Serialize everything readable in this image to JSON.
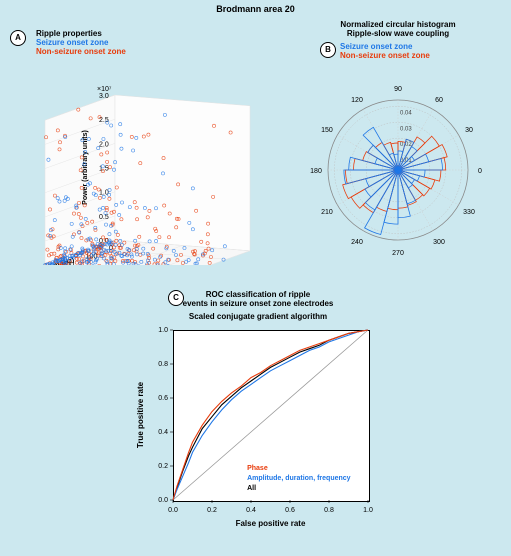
{
  "main_title": "Brodmann area 20",
  "colors": {
    "bg": "#cce8ef",
    "plot_bg": "#ffffff",
    "soz": "#1f77e6",
    "nsoz": "#e83c0c",
    "all": "#000000",
    "grid": "#d9d9d9",
    "diag": "#999999"
  },
  "panelA": {
    "label": "A",
    "title": "Ripple properties",
    "legend_soz": "Seizure onset zone",
    "legend_nsoz": "Non-seizure onset zone",
    "x_label": "Spectral content (Hz)",
    "x_range": [
      0,
      300
    ],
    "x_ticks": [
      0,
      100,
      200,
      300
    ],
    "y_label": "Duration",
    "y_range": [
      0,
      0.2
    ],
    "y_ticks": [
      0.0,
      0.05,
      0.1,
      0.15,
      0.2
    ],
    "z_label": "Power (arbitrary units)",
    "z_exponent": "×10⁷",
    "z_range": [
      0,
      3.0
    ],
    "z_ticks": [
      0.0,
      0.5,
      1.0,
      1.5,
      2.0,
      2.5,
      3.0
    ],
    "seed": 7,
    "n_points_per_group": 220
  },
  "panelB": {
    "label": "B",
    "title1": "Normalized circular histogram",
    "title2": "Ripple-slow wave coupling",
    "legend_soz": "Seizure onset zone",
    "legend_nsoz": "Non-seizure onset zone",
    "angle_ticks": [
      0,
      30,
      60,
      90,
      120,
      150,
      180,
      210,
      240,
      270,
      300,
      330
    ],
    "r_ticks": [
      0.01,
      0.02,
      0.03,
      0.04
    ],
    "r_max": 0.044,
    "n_bins": 24,
    "soz_bars": [
      0.028,
      0.02,
      0.012,
      0.017,
      0.02,
      0.012,
      0.01,
      0.011,
      0.031,
      0.022,
      0.015,
      0.031,
      0.034,
      0.021,
      0.024,
      0.029,
      0.042,
      0.034,
      0.03,
      0.022,
      0.013,
      0.012,
      0.014,
      0.017
    ],
    "nsoz_bars": [
      0.03,
      0.032,
      0.03,
      0.024,
      0.02,
      0.018,
      0.017,
      0.018,
      0.02,
      0.022,
      0.023,
      0.028,
      0.033,
      0.036,
      0.034,
      0.031,
      0.027,
      0.025,
      0.024,
      0.023,
      0.022,
      0.023,
      0.024,
      0.027
    ]
  },
  "panelC": {
    "label": "C",
    "title1": "ROC classification of ripple",
    "title2": "events in seizure onset zone electrodes",
    "subtitle": "Scaled conjugate gradient algorithm",
    "x_label": "False positive rate",
    "y_label": "True positive rate",
    "x_ticks": [
      0.0,
      0.2,
      0.4,
      0.6,
      0.8,
      1.0
    ],
    "y_ticks": [
      0.0,
      0.2,
      0.4,
      0.6,
      0.8,
      1.0
    ],
    "legend": {
      "phase": "Phase",
      "adf": "Amplitude, duration, frequency",
      "all": "All"
    },
    "phase_curve": [
      [
        0,
        0
      ],
      [
        0.02,
        0.08
      ],
      [
        0.05,
        0.18
      ],
      [
        0.08,
        0.28
      ],
      [
        0.1,
        0.34
      ],
      [
        0.15,
        0.44
      ],
      [
        0.2,
        0.52
      ],
      [
        0.25,
        0.58
      ],
      [
        0.3,
        0.63
      ],
      [
        0.35,
        0.67
      ],
      [
        0.4,
        0.72
      ],
      [
        0.45,
        0.75
      ],
      [
        0.5,
        0.79
      ],
      [
        0.55,
        0.82
      ],
      [
        0.6,
        0.85
      ],
      [
        0.65,
        0.88
      ],
      [
        0.7,
        0.9
      ],
      [
        0.75,
        0.92
      ],
      [
        0.8,
        0.94
      ],
      [
        0.85,
        0.96
      ],
      [
        0.9,
        0.98
      ],
      [
        0.95,
        0.99
      ],
      [
        1.0,
        1.0
      ]
    ],
    "adf_curve": [
      [
        0,
        0
      ],
      [
        0.02,
        0.06
      ],
      [
        0.05,
        0.14
      ],
      [
        0.08,
        0.22
      ],
      [
        0.1,
        0.28
      ],
      [
        0.15,
        0.38
      ],
      [
        0.2,
        0.46
      ],
      [
        0.25,
        0.53
      ],
      [
        0.3,
        0.59
      ],
      [
        0.35,
        0.64
      ],
      [
        0.4,
        0.68
      ],
      [
        0.45,
        0.72
      ],
      [
        0.5,
        0.76
      ],
      [
        0.55,
        0.79
      ],
      [
        0.6,
        0.82
      ],
      [
        0.65,
        0.85
      ],
      [
        0.7,
        0.88
      ],
      [
        0.75,
        0.9
      ],
      [
        0.8,
        0.93
      ],
      [
        0.85,
        0.95
      ],
      [
        0.9,
        0.97
      ],
      [
        0.95,
        0.99
      ],
      [
        1.0,
        1.0
      ]
    ],
    "all_curve": [
      [
        0,
        0
      ],
      [
        0.02,
        0.07
      ],
      [
        0.05,
        0.17
      ],
      [
        0.08,
        0.26
      ],
      [
        0.1,
        0.31
      ],
      [
        0.15,
        0.42
      ],
      [
        0.2,
        0.49
      ],
      [
        0.25,
        0.56
      ],
      [
        0.3,
        0.61
      ],
      [
        0.35,
        0.66
      ],
      [
        0.4,
        0.7
      ],
      [
        0.45,
        0.74
      ],
      [
        0.5,
        0.78
      ],
      [
        0.55,
        0.81
      ],
      [
        0.6,
        0.84
      ],
      [
        0.65,
        0.87
      ],
      [
        0.7,
        0.89
      ],
      [
        0.75,
        0.91
      ],
      [
        0.8,
        0.94
      ],
      [
        0.85,
        0.96
      ],
      [
        0.9,
        0.98
      ],
      [
        0.95,
        0.99
      ],
      [
        1.0,
        1.0
      ]
    ]
  }
}
